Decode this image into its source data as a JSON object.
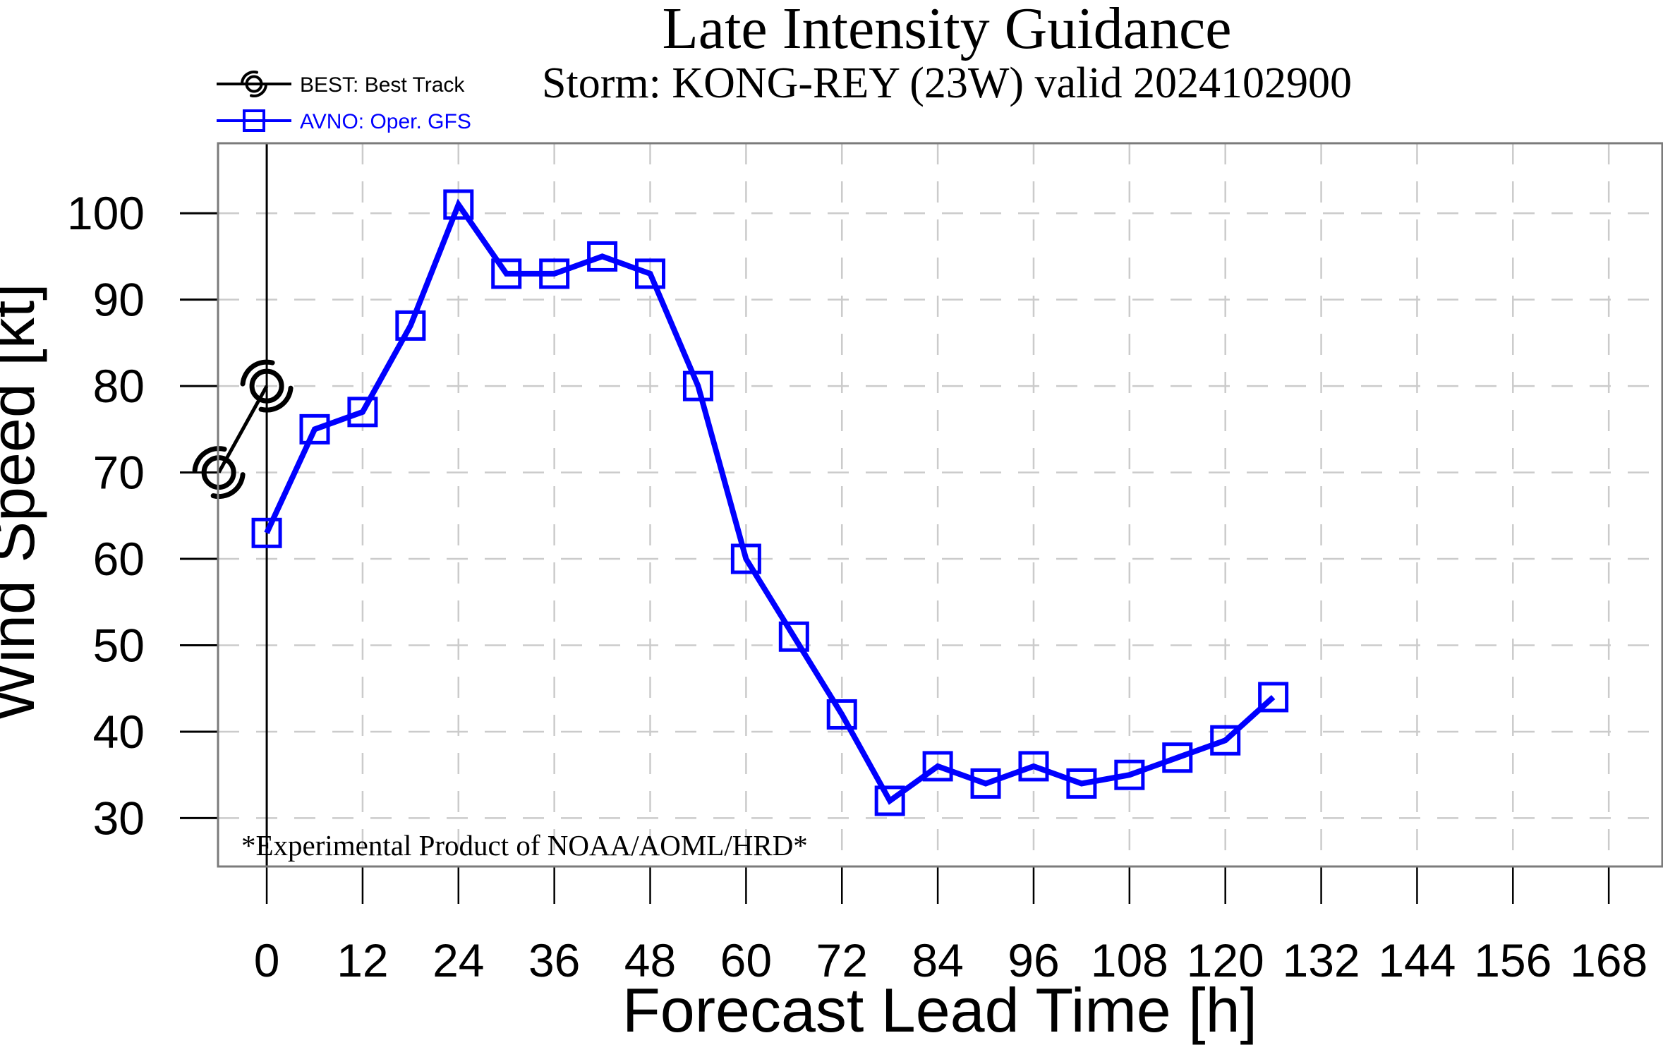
{
  "figure": {
    "title": "Late Intensity Guidance",
    "subtitle": "Storm: KONG-REY (23W) valid 2024102900",
    "watermark": "*Experimental Product of NOAA/AOML/HRD*",
    "colors": {
      "best": "#000000",
      "avno": "#0000ff",
      "grid": "#cbcbcb",
      "frame": "#7b7b7b",
      "tick": "#000000",
      "zero_line": "#000000",
      "background": "#ffffff"
    }
  },
  "legend": [
    {
      "id": "best",
      "label": "BEST: Best Track",
      "color": "#000000",
      "marker": "hurricane-icon"
    },
    {
      "id": "avno",
      "label": "AVNO: Oper. GFS",
      "color": "#0000ff",
      "marker": "open-square-icon"
    }
  ],
  "chart_data": {
    "type": "line",
    "title": "Late Intensity Guidance",
    "subtitle": "Storm: KONG-REY (23W) valid 2024102900",
    "xlabel": "Forecast Lead Time [h]",
    "ylabel": "Wind Speed [kt]",
    "xlim": [
      -6.1,
      174.7
    ],
    "ylim": [
      24.4,
      108.1
    ],
    "x_ticks": [
      0,
      12,
      24,
      36,
      48,
      60,
      72,
      84,
      96,
      108,
      120,
      132,
      144,
      156,
      168
    ],
    "y_ticks": [
      30,
      40,
      50,
      60,
      70,
      80,
      90,
      100
    ],
    "grid": true,
    "legend_position": "top-left",
    "zero_line_x": 0,
    "series": [
      {
        "name": "BEST: Best Track",
        "color": "#000000",
        "marker": "hurricane",
        "x": [
          -6,
          0
        ],
        "values": [
          70,
          80
        ]
      },
      {
        "name": "AVNO: Oper. GFS",
        "color": "#0000ff",
        "marker": "square",
        "x": [
          0,
          6,
          12,
          18,
          24,
          30,
          36,
          42,
          48,
          54,
          60,
          66,
          72,
          78,
          84,
          90,
          96,
          102,
          108,
          114,
          120,
          126
        ],
        "values": [
          63,
          75,
          77,
          87,
          101,
          93,
          93,
          95,
          93,
          80,
          60,
          51,
          42,
          32,
          36,
          34,
          36,
          34,
          35,
          37,
          39,
          44
        ]
      }
    ]
  }
}
